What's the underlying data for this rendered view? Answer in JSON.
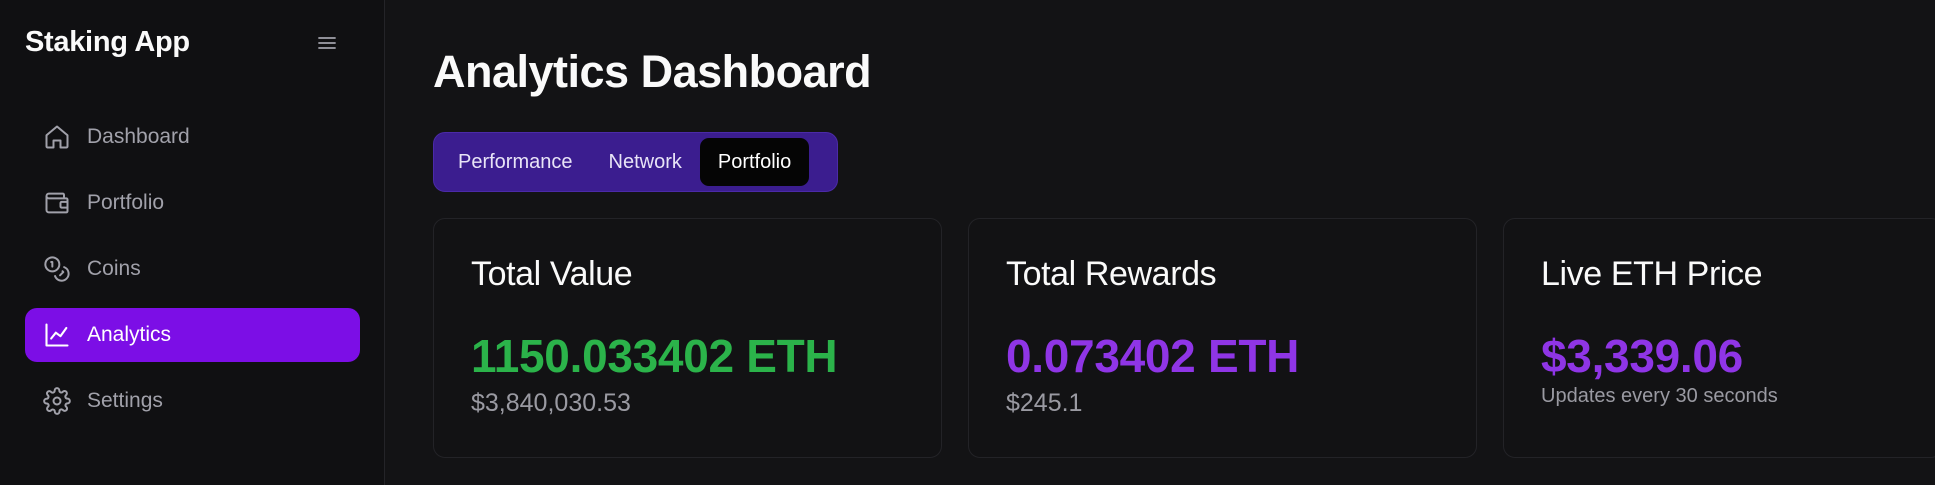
{
  "app": {
    "title": "Staking App"
  },
  "sidebar": {
    "items": [
      {
        "label": "Dashboard",
        "icon": "home-icon",
        "active": false
      },
      {
        "label": "Portfolio",
        "icon": "wallet-icon",
        "active": false
      },
      {
        "label": "Coins",
        "icon": "coins-icon",
        "active": false
      },
      {
        "label": "Analytics",
        "icon": "chart-line-icon",
        "active": true
      },
      {
        "label": "Settings",
        "icon": "gear-icon",
        "active": false
      }
    ]
  },
  "header": {
    "title": "Analytics Dashboard"
  },
  "tabs": [
    {
      "label": "Performance",
      "active": false
    },
    {
      "label": "Network",
      "active": false
    },
    {
      "label": "Portfolio",
      "active": true
    }
  ],
  "cards": [
    {
      "title": "Total Value",
      "value": "1150.033402 ETH",
      "value_color": "#2bb34a",
      "sub": "$3,840,030.53"
    },
    {
      "title": "Total Rewards",
      "value": "0.073402 ETH",
      "value_color": "#8f35e6",
      "sub": "$245.1"
    },
    {
      "title": "Live ETH Price",
      "value": "$3,339.06",
      "value_color": "#8f35e6",
      "sub": "Updates every 30 seconds"
    }
  ],
  "colors": {
    "accent": "#7c0ee6",
    "tabs_bg": "#3b1d8f",
    "positive": "#2bb34a",
    "purple": "#8f35e6"
  }
}
